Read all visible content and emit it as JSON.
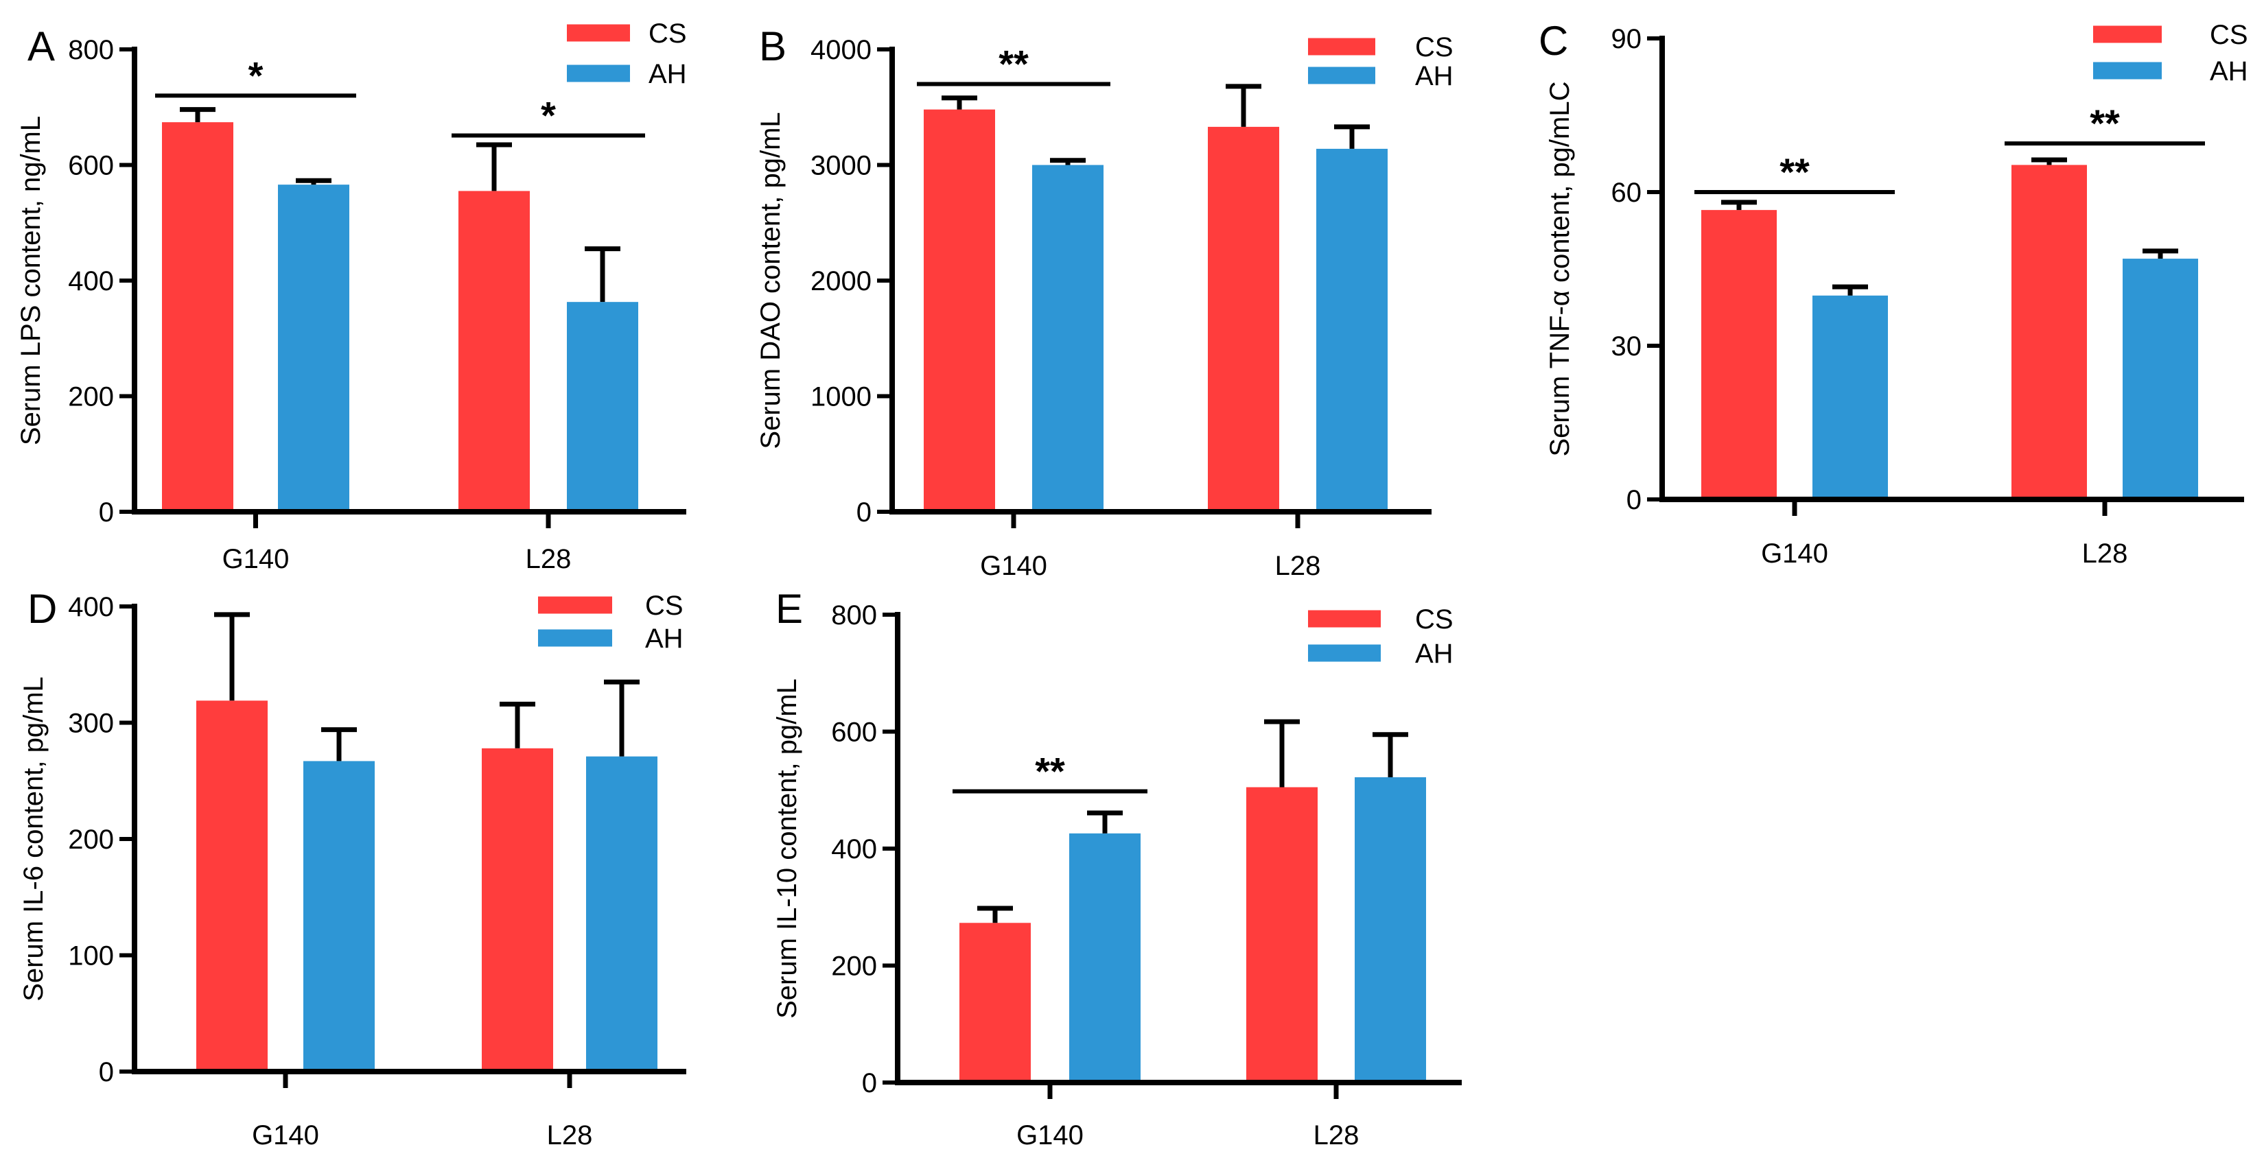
{
  "colors": {
    "CS": "#ff3d3d",
    "AH": "#2e96d5",
    "axis": "#000000"
  },
  "chart_data": [
    {
      "type": "bar",
      "panel_label": "A",
      "categories": [
        "G140",
        "L28"
      ],
      "series": [
        {
          "name": "CS",
          "values": [
            674,
            555
          ],
          "errors": [
            22,
            80
          ]
        },
        {
          "name": "AH",
          "values": [
            566,
            363
          ],
          "errors": [
            7,
            92
          ]
        }
      ],
      "ylabel": "Serum LPS content, ng/mL",
      "ylim": [
        0,
        800
      ],
      "yticks": [
        0,
        200,
        400,
        600,
        800
      ],
      "ytick_labels": [
        "0",
        "200",
        "400",
        "600",
        "800"
      ],
      "legend": [
        "CS",
        "AH"
      ],
      "legend_position": "top-right",
      "significance": [
        {
          "category": "G140",
          "label": "*",
          "y": 720
        },
        {
          "category": "L28",
          "label": "*",
          "y": 651
        }
      ]
    },
    {
      "type": "bar",
      "panel_label": "B",
      "categories": [
        "G140",
        "L28"
      ],
      "series": [
        {
          "name": "CS",
          "values": [
            3480,
            3330
          ],
          "errors": [
            100,
            350
          ]
        },
        {
          "name": "AH",
          "values": [
            3000,
            3140
          ],
          "errors": [
            40,
            190
          ]
        }
      ],
      "ylabel": "Serum DAO content, pg/mL",
      "ylim": [
        0,
        4000
      ],
      "yticks": [
        0,
        1000,
        2000,
        3000,
        4000
      ],
      "ytick_labels": [
        "0",
        "1000",
        "2000",
        "3000",
        "4000"
      ],
      "legend": [
        "CS",
        "AH"
      ],
      "legend_position": "top-right",
      "significance": [
        {
          "category": "G140",
          "label": "**",
          "y": 3700
        }
      ]
    },
    {
      "type": "bar",
      "panel_label": "C",
      "categories": [
        "G140",
        "L28"
      ],
      "series": [
        {
          "name": "CS",
          "values": [
            56.5,
            65.3
          ],
          "errors": [
            1.5,
            1.0
          ]
        },
        {
          "name": "AH",
          "values": [
            39.8,
            47.0
          ],
          "errors": [
            1.7,
            1.5
          ]
        }
      ],
      "ylabel": "Serum TNF-α content, pg/mLC",
      "ylim": [
        0,
        90
      ],
      "yticks": [
        0,
        30,
        60,
        90
      ],
      "ytick_labels": [
        "0",
        "30",
        "60",
        "90"
      ],
      "legend": [
        "CS",
        "AH"
      ],
      "legend_position": "top-right",
      "significance": [
        {
          "category": "G140",
          "label": "**",
          "y": 60.0
        },
        {
          "category": "L28",
          "label": "**",
          "y": 69.5
        }
      ]
    },
    {
      "type": "bar",
      "panel_label": "D",
      "categories": [
        "G140",
        "L28"
      ],
      "series": [
        {
          "name": "CS",
          "values": [
            319,
            278
          ],
          "errors": [
            74,
            38
          ]
        },
        {
          "name": "AH",
          "values": [
            267,
            271
          ],
          "errors": [
            27,
            64
          ]
        }
      ],
      "ylabel": "Serum IL-6 content, pg/mL",
      "ylim": [
        0,
        400
      ],
      "yticks": [
        0,
        100,
        200,
        300,
        400
      ],
      "ytick_labels": [
        "0",
        "100",
        "200",
        "300",
        "400"
      ],
      "legend": [
        "CS",
        "AH"
      ],
      "legend_position": "top-right",
      "significance": []
    },
    {
      "type": "bar",
      "panel_label": "E",
      "categories": [
        "G140",
        "L28"
      ],
      "series": [
        {
          "name": "CS",
          "values": [
            273,
            505
          ],
          "errors": [
            25,
            112
          ]
        },
        {
          "name": "AH",
          "values": [
            426,
            522
          ],
          "errors": [
            35,
            73
          ]
        }
      ],
      "ylabel": "Serum IL-10 content, pg/mL",
      "ylim": [
        0,
        800
      ],
      "yticks": [
        0,
        200,
        400,
        600,
        800
      ],
      "ytick_labels": [
        "0",
        "200",
        "400",
        "600",
        "800"
      ],
      "legend": [
        "CS",
        "AH"
      ],
      "legend_position": "top-right",
      "significance": [
        {
          "category": "G140",
          "label": "**",
          "y": 498
        }
      ]
    }
  ]
}
